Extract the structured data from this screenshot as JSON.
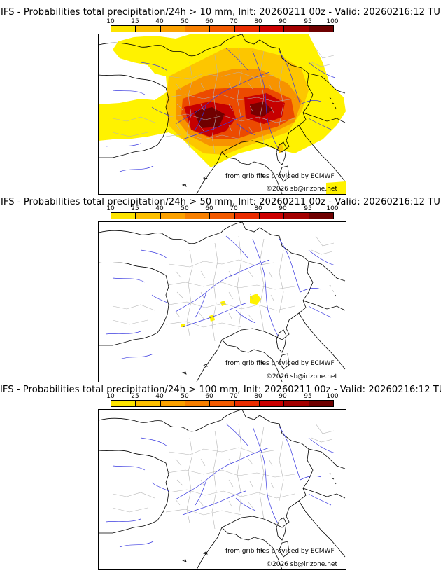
{
  "colorbar": {
    "ticks": [
      "10",
      "25",
      "40",
      "50",
      "60",
      "70",
      "80",
      "90",
      "95",
      "100"
    ],
    "colors": [
      "#ffff00",
      "#fde400",
      "#fdc000",
      "#fba100",
      "#f77f00",
      "#f25a00",
      "#e92c00",
      "#cc0000",
      "#a30000",
      "#6e0000"
    ]
  },
  "panels": [
    {
      "title": "IFS - Probabilities total precipitation/24h > 10 mm, Init: 20260211 00z - Valid: 20260216:12 TU",
      "credit_source": "from grib files provided by ECMWF",
      "credit_copyright": "©2026 sb@irizone.net"
    },
    {
      "title": "IFS - Probabilities total precipitation/24h > 50 mm, Init: 20260211 00z - Valid: 20260216:12 TU",
      "credit_source": "from grib files provided by ECMWF",
      "credit_copyright": "©2026 sb@irizone.net"
    },
    {
      "title": "IFS - Probabilities total precipitation/24h > 100 mm, Init: 20260211 00z - Valid: 20260216:12 TU",
      "credit_source": "from grib files provided by ECMWF",
      "credit_copyright": "©2026 sb@irizone.net"
    }
  ]
}
